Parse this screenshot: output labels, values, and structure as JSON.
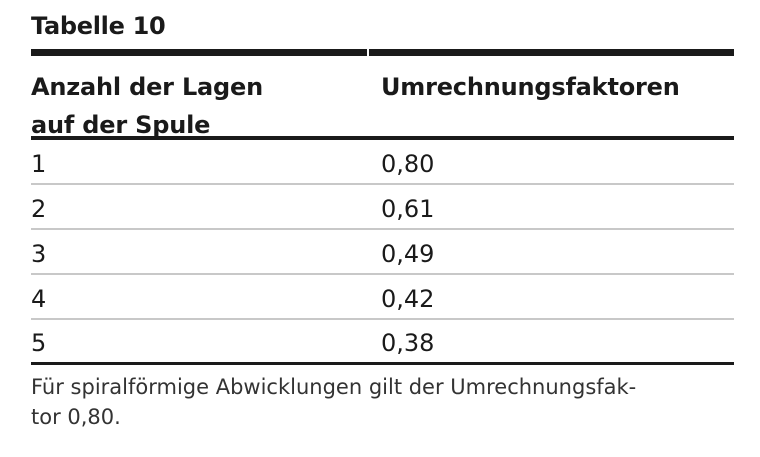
{
  "caption": "Tabelle 10",
  "table": {
    "headers": [
      "Anzahl der Lagen",
      "auf der Spule",
      "Umrechnungsfaktoren"
    ],
    "rows": [
      {
        "layers": "1",
        "factor": "0,80"
      },
      {
        "layers": "2",
        "factor": "0,61"
      },
      {
        "layers": "3",
        "factor": "0,49"
      },
      {
        "layers": "4",
        "factor": "0,42"
      },
      {
        "layers": "5",
        "factor": "0,38"
      }
    ]
  },
  "footnote": {
    "line1": "Für spiralförmige Abwicklungen gilt der Umrechnungsfak-",
    "line2": "tor 0,80."
  }
}
